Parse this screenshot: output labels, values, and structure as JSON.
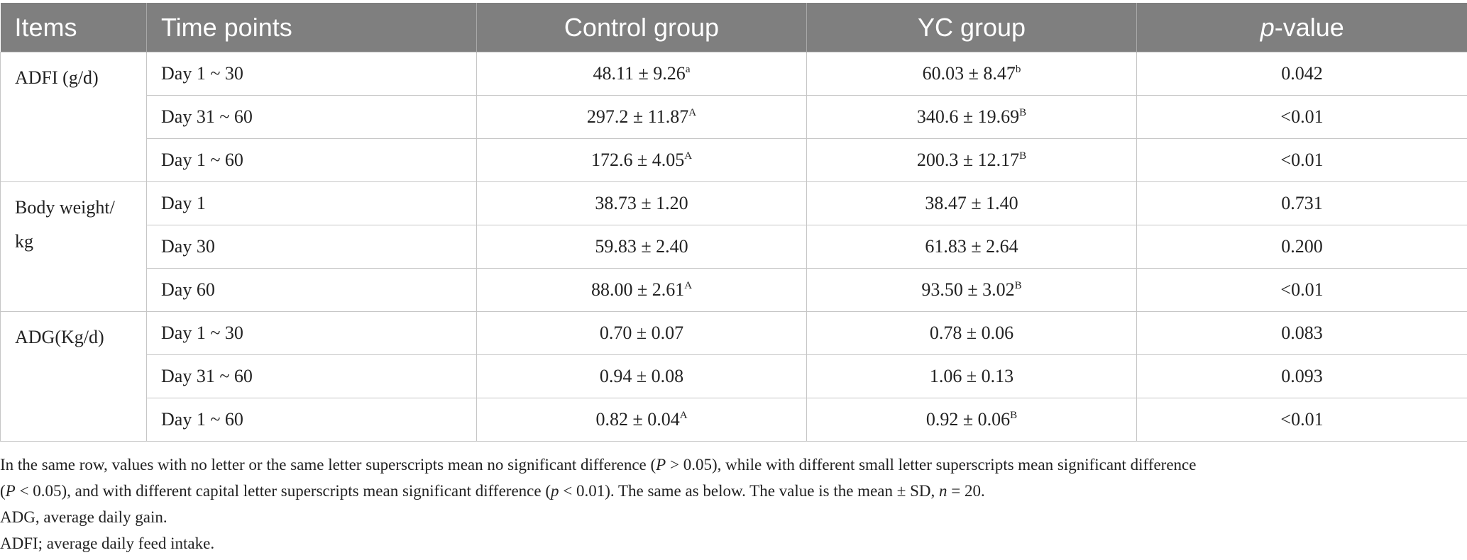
{
  "table": {
    "headers": [
      "Items",
      "Time points",
      "Control group",
      "YC group",
      "-value"
    ],
    "header_p": "p",
    "groups": [
      {
        "item": "ADFI (g/d)",
        "rows": [
          {
            "time": "Day 1 ~ 30",
            "control": "48.11 ± 9.26",
            "control_sup": "a",
            "yc": "60.03 ± 8.47",
            "yc_sup": "b",
            "p": "0.042"
          },
          {
            "time": "Day 31 ~ 60",
            "control": "297.2 ± 11.87",
            "control_sup": "A",
            "yc": "340.6 ± 19.69",
            "yc_sup": "B",
            "p": "<0.01"
          },
          {
            "time": "Day 1 ~ 60",
            "control": "172.6 ± 4.05",
            "control_sup": "A",
            "yc": "200.3 ± 12.17",
            "yc_sup": "B",
            "p": "<0.01"
          }
        ]
      },
      {
        "item_line1": "Body weight/",
        "item_line2": "kg",
        "rows": [
          {
            "time": "Day 1",
            "control": "38.73 ± 1.20",
            "control_sup": "",
            "yc": "38.47 ± 1.40",
            "yc_sup": "",
            "p": "0.731"
          },
          {
            "time": "Day 30",
            "control": "59.83 ± 2.40",
            "control_sup": "",
            "yc": "61.83 ± 2.64",
            "yc_sup": "",
            "p": "0.200"
          },
          {
            "time": "Day 60",
            "control": "88.00 ± 2.61",
            "control_sup": "A",
            "yc": "93.50 ± 3.02",
            "yc_sup": "B",
            "p": "<0.01"
          }
        ]
      },
      {
        "item": "ADG(Kg/d)",
        "rows": [
          {
            "time": "Day 1 ~ 30",
            "control": "0.70 ± 0.07",
            "control_sup": "",
            "yc": "0.78 ± 0.06",
            "yc_sup": "",
            "p": "0.083"
          },
          {
            "time": "Day 31 ~ 60",
            "control": "0.94 ± 0.08",
            "control_sup": "",
            "yc": "1.06 ± 0.13",
            "yc_sup": "",
            "p": "0.093"
          },
          {
            "time": "Day 1 ~ 60",
            "control": "0.82 ± 0.04",
            "control_sup": "A",
            "yc": "0.92 ± 0.06",
            "yc_sup": "B",
            "p": "<0.01"
          }
        ]
      }
    ]
  },
  "footnotes": {
    "n1_a": "In the same row, values with no letter or the same letter superscripts mean no significant difference (",
    "n1_b": "P",
    "n1_c": " > 0.05), while with different small letter superscripts mean significant difference",
    "n2_a": "(",
    "n2_b": "P",
    "n2_c": " < 0.05), and with different capital letter superscripts mean significant difference (",
    "n2_d": "p",
    "n2_e": " < 0.01). The same as below. The value is the mean ± SD, ",
    "n2_f": "n",
    "n2_g": " = 20.",
    "adg": "ADG, average daily gain.",
    "adfi": "ADFI; average daily feed intake."
  }
}
